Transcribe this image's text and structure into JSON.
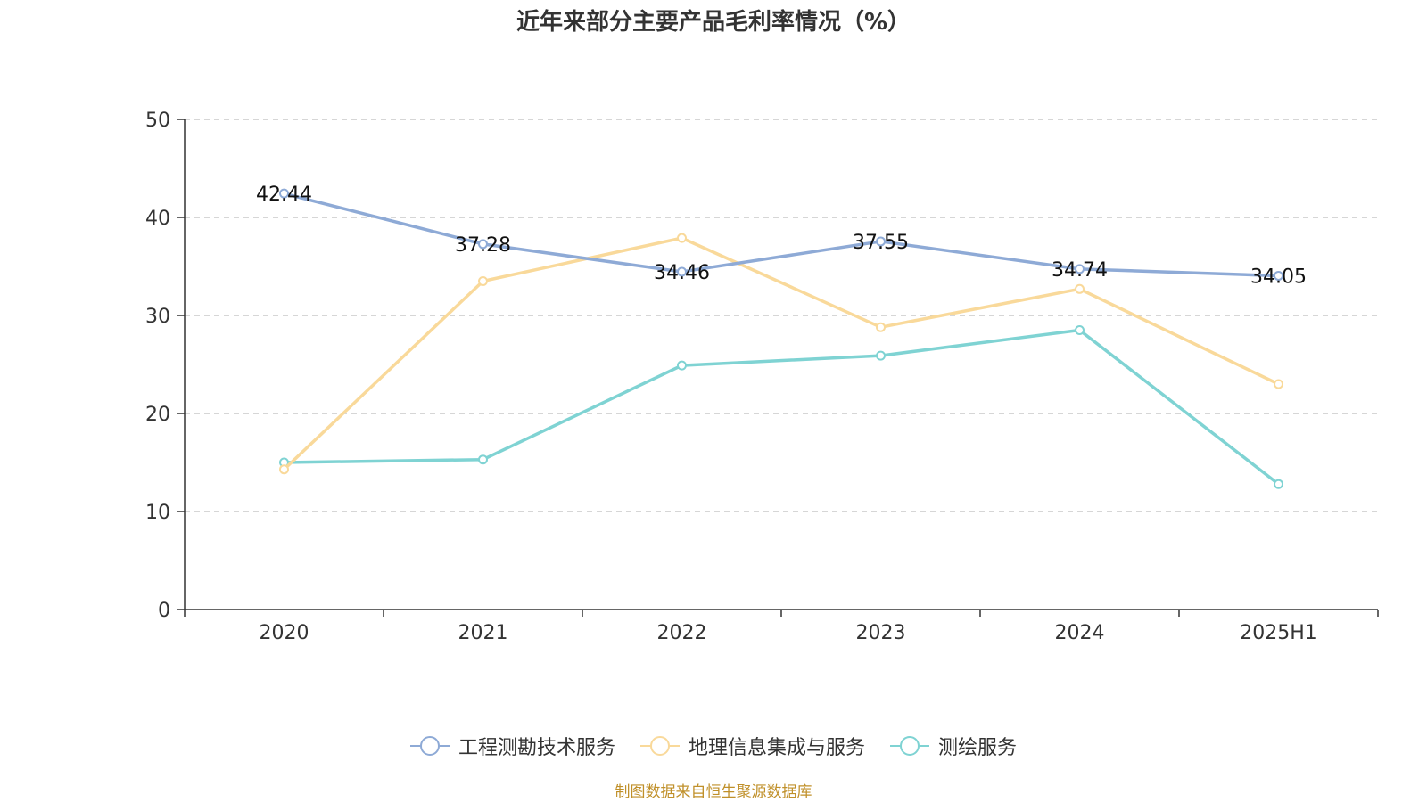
{
  "chart_data": {
    "type": "line",
    "title": "近年来部分主要产品毛利率情况（%）",
    "categories": [
      "2020",
      "2021",
      "2022",
      "2023",
      "2024",
      "2025H1"
    ],
    "ylim": [
      0,
      50
    ],
    "yticks": [
      "0",
      "10",
      "20",
      "30",
      "40",
      "50"
    ],
    "grid": true,
    "legend_position": "bottom",
    "series": [
      {
        "name": "工程测勘技术服务",
        "color": "#8eaad6",
        "values": [
          42.44,
          37.28,
          34.46,
          37.55,
          34.74,
          34.05
        ],
        "labels": [
          "42.44",
          "37.28",
          "34.46",
          "37.55",
          "34.74",
          "34.05"
        ]
      },
      {
        "name": "地理信息集成与服务",
        "color": "#f9d99a",
        "values": [
          14.3,
          33.5,
          37.9,
          28.8,
          32.7,
          23.0
        ]
      },
      {
        "name": "测绘服务",
        "color": "#7fd3d3",
        "values": [
          15.0,
          15.3,
          24.9,
          25.9,
          28.5,
          12.8
        ]
      }
    ]
  },
  "source": "制图数据来自恒生聚源数据库"
}
